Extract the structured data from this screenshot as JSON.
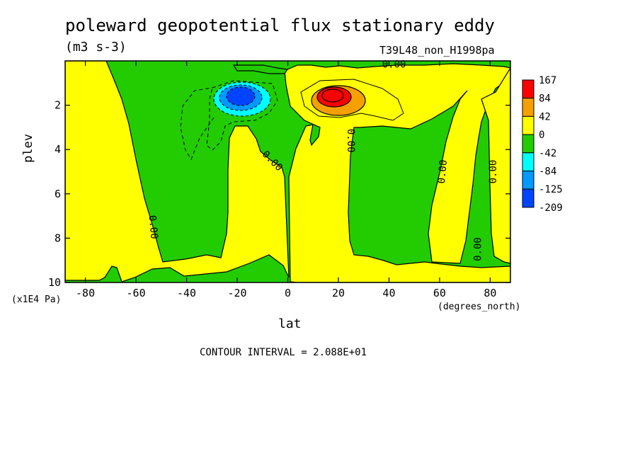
{
  "chart_data": {
    "type": "heatmap",
    "title": "poleward geopotential flux stationary eddy",
    "units": "(m3 s-3)",
    "run_label": "T39L48_non_H1998pa",
    "xlabel": "lat",
    "xunits": "(degrees_north)",
    "ylabel": "plev",
    "yunits": "(x1E4 Pa)",
    "contour_interval_text": "CONTOUR INTERVAL = 2.088E+01",
    "xlim": [
      -88,
      88
    ],
    "ylim": [
      10,
      0
    ],
    "x_ticks": [
      -80,
      -60,
      -40,
      -20,
      0,
      20,
      40,
      60,
      80
    ],
    "y_ticks": [
      2,
      4,
      6,
      8,
      10
    ],
    "colorbar": {
      "levels": [
        "167",
        "84",
        "42",
        "0",
        "-42",
        "-84",
        "-125",
        "-209"
      ],
      "colors": [
        "#ff0000",
        "#f5a000",
        "#ffff00",
        "#22cc00",
        "#00ffff",
        "#0099ff",
        "#0044ff"
      ]
    },
    "contour_labels": [
      {
        "text": "0.00",
        "x": 42,
        "y": 0.15,
        "angle": 0
      },
      {
        "text": "0.00",
        "x": 25,
        "y": 3.6,
        "angle": 90
      },
      {
        "text": "0.00",
        "x": -6,
        "y": 4.5,
        "angle": 45
      },
      {
        "text": "0.00",
        "x": -53,
        "y": 7.5,
        "angle": 85
      },
      {
        "text": "0.00",
        "x": 61,
        "y": 5.0,
        "angle": -85
      },
      {
        "text": "0.00",
        "x": 81,
        "y": 5.0,
        "angle": -90
      },
      {
        "text": "0.00",
        "x": 75,
        "y": 8.5,
        "angle": -90
      }
    ]
  }
}
